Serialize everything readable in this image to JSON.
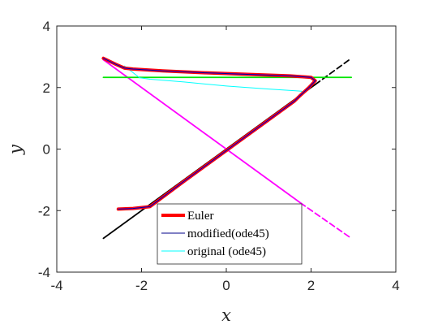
{
  "chart_data": {
    "type": "line",
    "xlabel": "x",
    "ylabel": "y",
    "xlim": [
      -4,
      4
    ],
    "ylim": [
      -4,
      4
    ],
    "xticks": [
      "-4",
      "-2",
      "0",
      "2",
      "4"
    ],
    "yticks": [
      "-4",
      "-2",
      "0",
      "2",
      "4"
    ],
    "grid": false,
    "legend_position": "bottom-center",
    "series": [
      {
        "name": "",
        "role": "reference line y=x (solid part)",
        "color": "#000000",
        "dash": "solid",
        "x": [
          -2.9,
          2.1
        ],
        "y": [
          -2.9,
          2.1
        ]
      },
      {
        "name": "",
        "role": "reference line y=x (dashed part)",
        "color": "#000000",
        "dash": "dashed",
        "x": [
          2.1,
          2.95
        ],
        "y": [
          2.1,
          2.95
        ]
      },
      {
        "name": "",
        "role": "reference line y=-x (solid part)",
        "color": "#ff00ff",
        "dash": "solid",
        "x": [
          -2.9,
          1.75
        ],
        "y": [
          2.9,
          -1.75
        ]
      },
      {
        "name": "",
        "role": "reference line y=-x (dashed part)",
        "color": "#ff00ff",
        "dash": "dashed",
        "x": [
          1.75,
          2.95
        ],
        "y": [
          -1.75,
          -2.9
        ]
      },
      {
        "name": "",
        "role": "horizontal line",
        "color": "#00e600",
        "dash": "solid",
        "x": [
          -2.9,
          2.95
        ],
        "y": [
          2.33,
          2.33
        ]
      },
      {
        "name": "original (ode45)",
        "color": "#00ffff",
        "width": 1,
        "x": [
          -2.5,
          -2.2,
          -1.8,
          -1.0,
          0.0,
          1.0,
          1.6,
          1.78,
          1.78,
          1.0,
          0.0,
          -1.0,
          -1.8,
          -2.05,
          -2.4
        ],
        "y": [
          -1.95,
          -1.93,
          -1.88,
          -1.05,
          -0.05,
          0.95,
          1.55,
          1.8,
          1.88,
          1.95,
          2.05,
          2.18,
          2.27,
          2.32,
          2.7
        ]
      },
      {
        "name": "Euler",
        "color": "#ff0000",
        "width": 4,
        "x": [
          -2.55,
          -2.2,
          -1.8,
          -1.0,
          0.0,
          1.0,
          1.6,
          1.75,
          1.95,
          2.1,
          2.0,
          1.5,
          0.5,
          -0.5,
          -1.5,
          -2.2,
          -2.4,
          -2.6,
          -2.9
        ],
        "y": [
          -1.95,
          -1.93,
          -1.87,
          -1.05,
          -0.05,
          0.95,
          1.55,
          1.75,
          2.0,
          2.22,
          2.33,
          2.38,
          2.43,
          2.48,
          2.54,
          2.6,
          2.63,
          2.75,
          2.95
        ]
      },
      {
        "name": "",
        "role": "overlay trajectory",
        "color": "#cc00cc",
        "width": 1.5,
        "x": [
          -2.55,
          -2.2,
          -1.8,
          -1.0,
          0.0,
          1.0,
          1.6,
          1.75,
          1.95,
          2.1,
          2.0,
          1.5,
          0.5,
          -0.5,
          -1.5,
          -2.2,
          -2.4,
          -2.6,
          -2.9
        ],
        "y": [
          -1.95,
          -1.93,
          -1.87,
          -1.05,
          -0.05,
          0.95,
          1.55,
          1.75,
          2.0,
          2.22,
          2.33,
          2.38,
          2.43,
          2.48,
          2.54,
          2.6,
          2.63,
          2.75,
          2.95
        ]
      },
      {
        "name": "modified(ode45)",
        "color": "#00008b",
        "width": 1,
        "x": [
          -2.55,
          -2.2,
          -1.8,
          -1.0,
          0.0,
          1.0,
          1.6,
          1.75,
          1.95,
          2.1,
          2.0,
          1.5,
          0.5,
          -0.5,
          -1.5,
          -2.2,
          -2.4,
          -2.6,
          -2.9
        ],
        "y": [
          -1.95,
          -1.93,
          -1.87,
          -1.05,
          -0.05,
          0.95,
          1.55,
          1.75,
          2.0,
          2.22,
          2.33,
          2.38,
          2.43,
          2.48,
          2.54,
          2.6,
          2.63,
          2.75,
          2.95
        ]
      }
    ],
    "legend": [
      {
        "label": "Euler",
        "color": "#ff0000",
        "line_width": 4
      },
      {
        "label": "modified(ode45)",
        "color": "#00008b",
        "line_width": 1
      },
      {
        "label": "original (ode45)",
        "color": "#00ffff",
        "line_width": 1
      }
    ]
  }
}
